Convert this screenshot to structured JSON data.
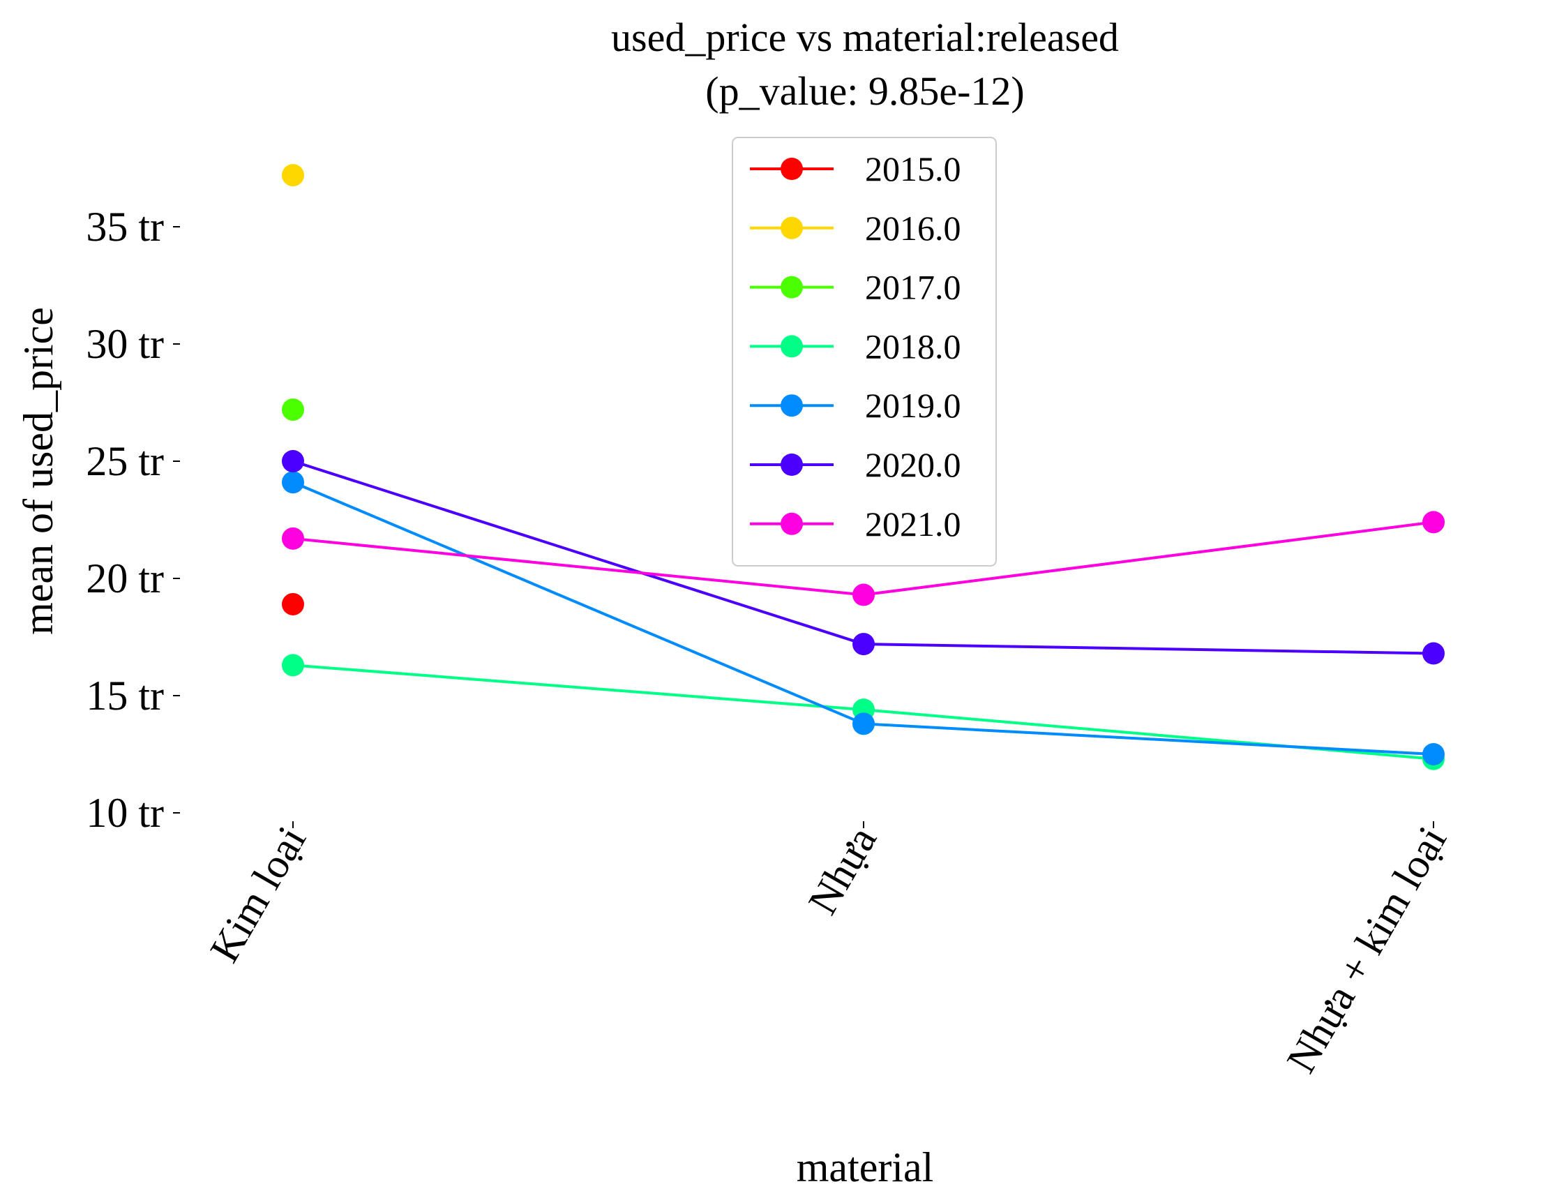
{
  "chart_data": {
    "type": "line",
    "title_lines": [
      "used_price vs material:released",
      "(p_value: 9.85e-12)"
    ],
    "xlabel": "material",
    "ylabel": "mean of used_price",
    "categories": [
      "Kim loại",
      "Nhựa",
      "Nhựa + kim loại"
    ],
    "ylim": [
      9.5,
      38.5
    ],
    "yticks": [
      {
        "value": 10,
        "label": "10 tr"
      },
      {
        "value": 15,
        "label": "15 tr"
      },
      {
        "value": 20,
        "label": "20 tr"
      },
      {
        "value": 25,
        "label": "25 tr"
      },
      {
        "value": 30,
        "label": "30 tr"
      },
      {
        "value": 35,
        "label": "35 tr"
      }
    ],
    "grid": false,
    "legend_position": "upper-center",
    "series": [
      {
        "name": "2015.0",
        "color": "#ff0000",
        "values": [
          18.9,
          null,
          null
        ]
      },
      {
        "name": "2016.0",
        "color": "#ffd700",
        "values": [
          37.2,
          null,
          null
        ]
      },
      {
        "name": "2017.0",
        "color": "#4cff00",
        "values": [
          27.2,
          null,
          null
        ]
      },
      {
        "name": "2018.0",
        "color": "#00ff87",
        "values": [
          16.3,
          14.4,
          12.3
        ]
      },
      {
        "name": "2019.0",
        "color": "#008cff",
        "values": [
          24.1,
          13.8,
          12.5
        ]
      },
      {
        "name": "2020.0",
        "color": "#4b00ff",
        "values": [
          25.0,
          17.2,
          16.8
        ]
      },
      {
        "name": "2021.0",
        "color": "#ff00e0",
        "values": [
          21.7,
          19.3,
          22.4
        ]
      }
    ]
  }
}
